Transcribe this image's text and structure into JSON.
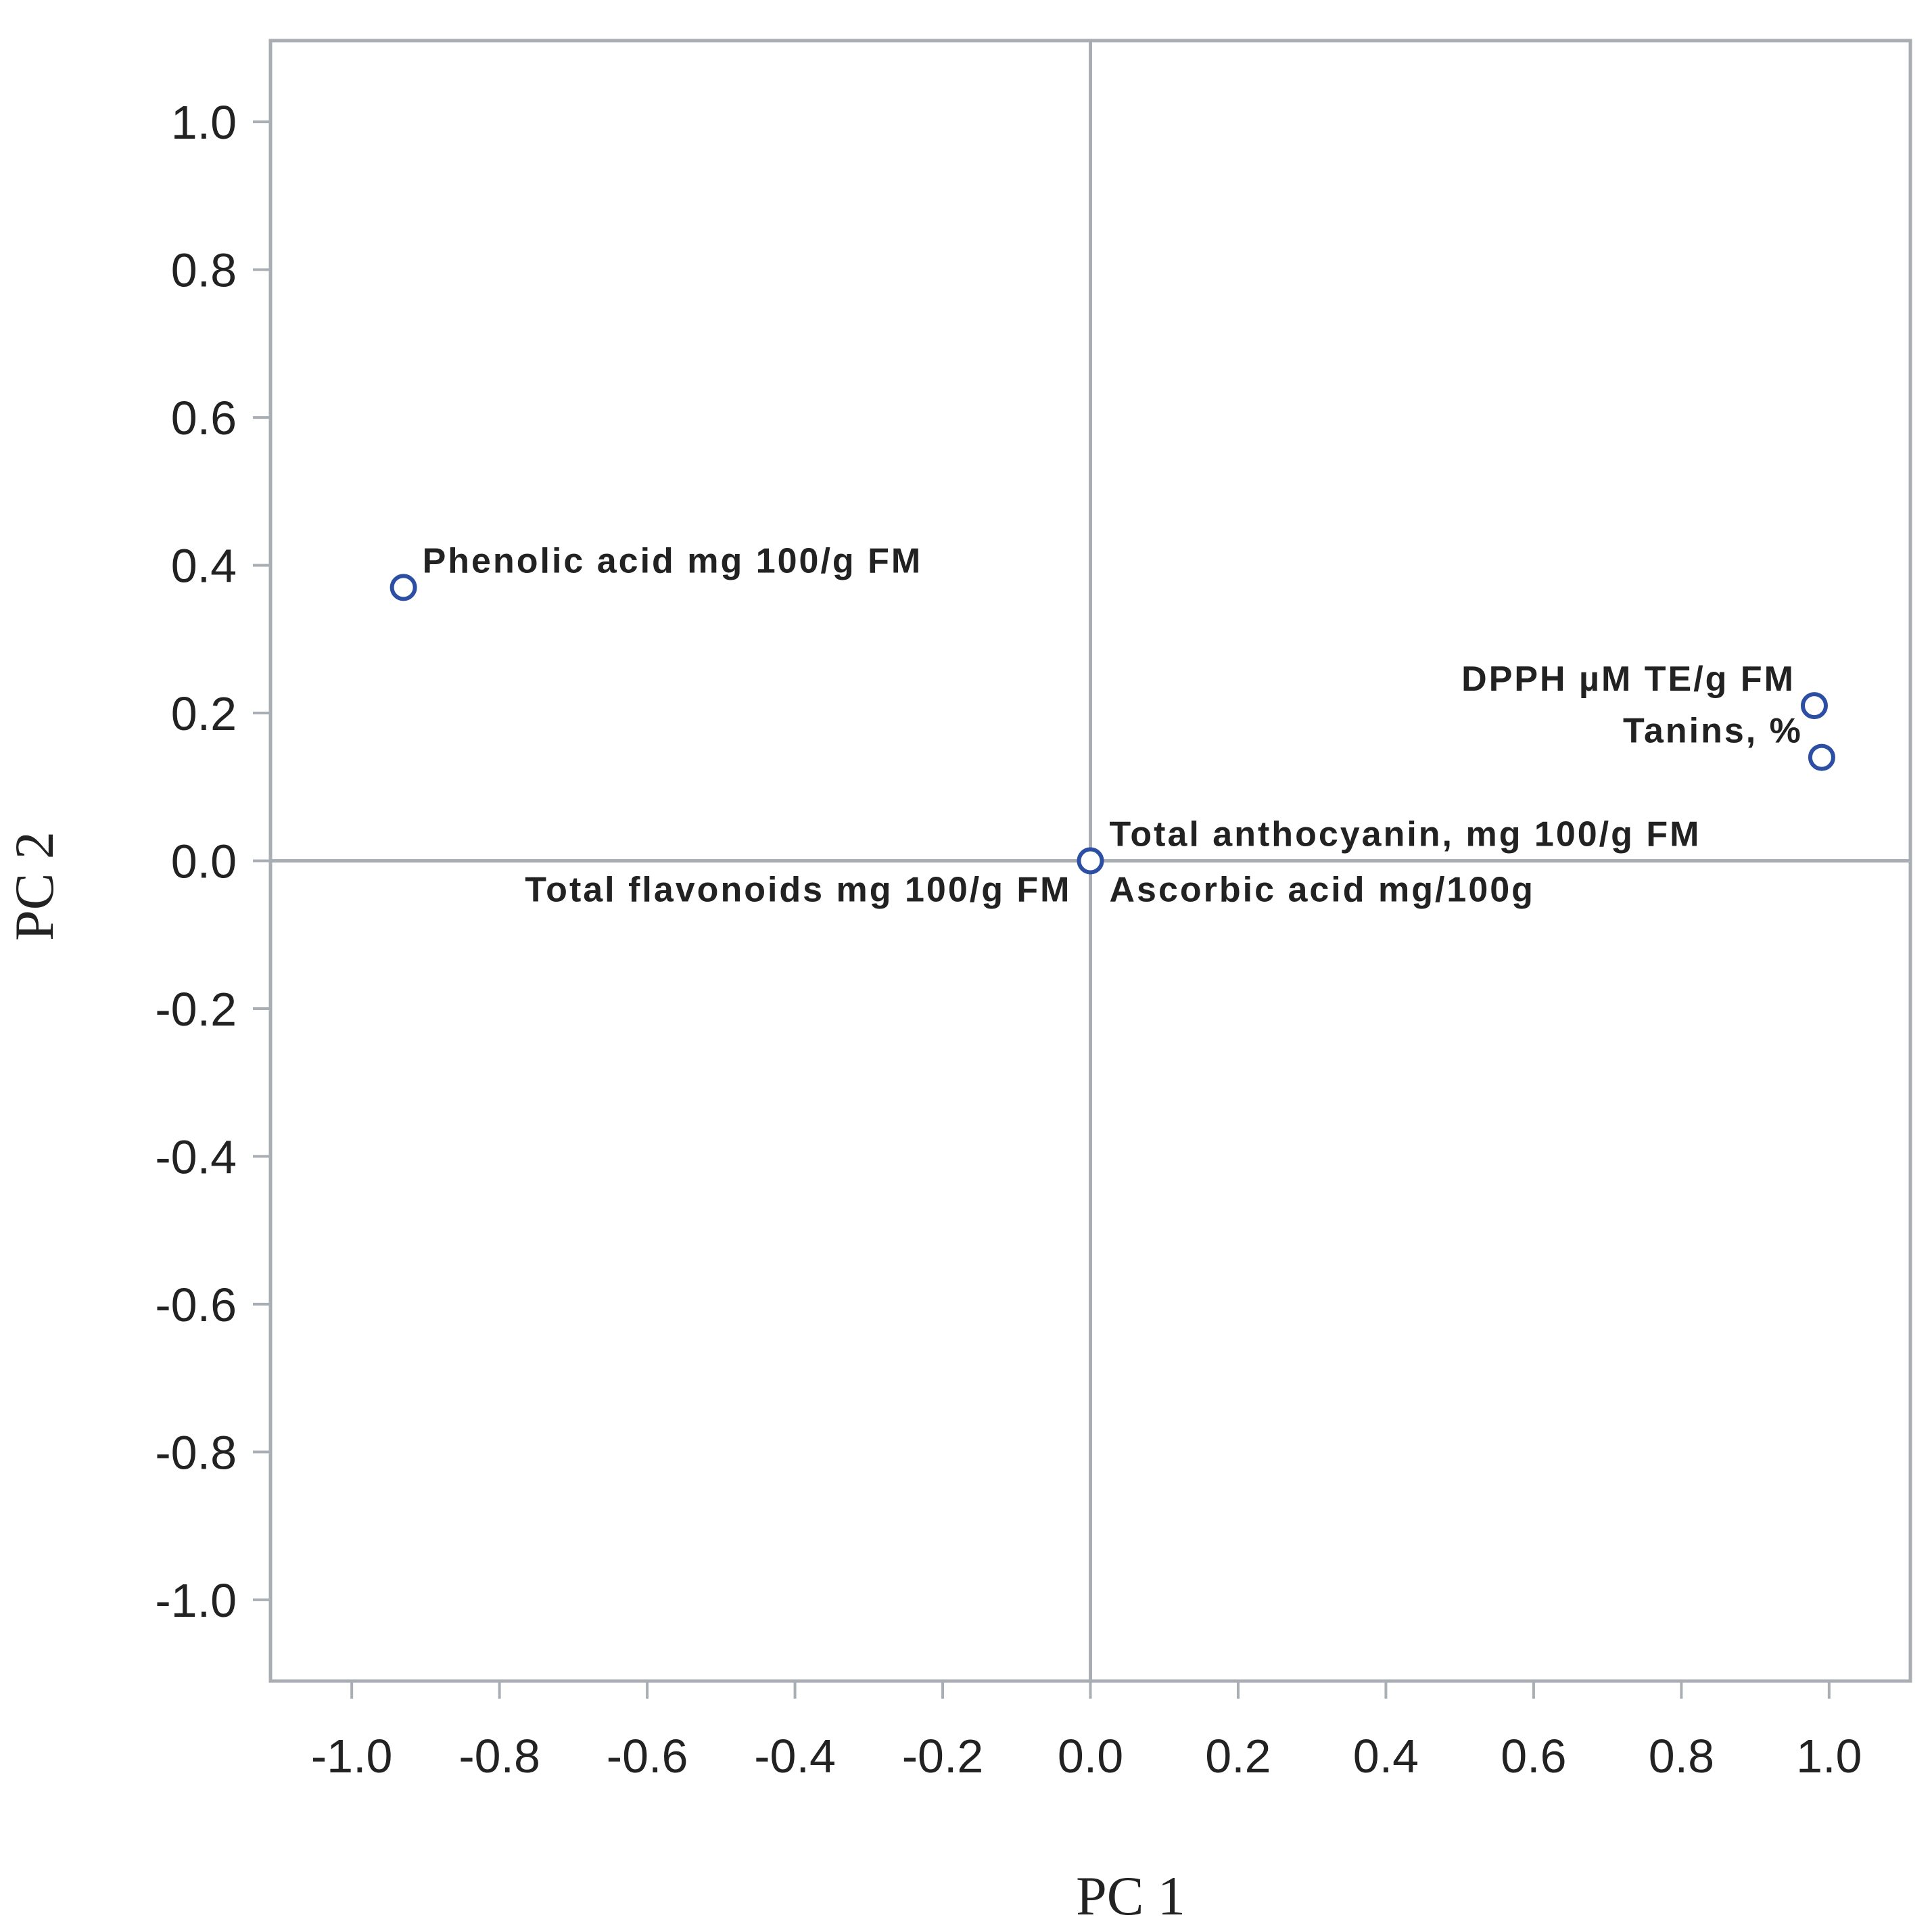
{
  "chart_data": {
    "type": "scatter",
    "title": "",
    "xlabel": "PC 1",
    "ylabel": "PC 2",
    "xlim": [
      -1.11,
      1.11
    ],
    "ylim": [
      -1.11,
      1.11
    ],
    "grid": false,
    "reference_lines": {
      "x": 0,
      "y": 0
    },
    "x_ticks": [
      -1.0,
      -0.8,
      -0.6,
      -0.4,
      -0.2,
      0.0,
      0.2,
      0.4,
      0.6,
      0.8,
      1.0
    ],
    "y_ticks": [
      1.0,
      0.8,
      0.6,
      0.4,
      0.2,
      0.0,
      -0.2,
      -0.4,
      -0.6,
      -0.8,
      -1.0
    ],
    "x_tick_labels": [
      "-1.0",
      "-0.8",
      "-0.6",
      "-0.4",
      "-0.2",
      "0.0",
      "0.2",
      "0.4",
      "0.6",
      "0.8",
      "1.0"
    ],
    "y_tick_labels": [
      "1.0",
      "0.8",
      "0.6",
      "0.4",
      "0.2",
      "0.0",
      "-0.2",
      "-0.4",
      "-0.6",
      "-0.8",
      "-1.0"
    ],
    "marker_color": "#2c4fa3",
    "points": [
      {
        "label": "Phenolic acid mg 100/g FM",
        "x": -0.93,
        "y": 0.37,
        "label_side": "right-up"
      },
      {
        "label": "DPPH µM TE/g FM",
        "x": 0.98,
        "y": 0.21,
        "label_side": "left-up"
      },
      {
        "label": "Tanins, %",
        "x": 0.99,
        "y": 0.14,
        "label_side": "left-up"
      },
      {
        "label": "Total anthocyanin, mg 100/g FM",
        "x": 0.0,
        "y": 0.0,
        "label_side": "right-up"
      },
      {
        "label": "Total flavonoids mg 100/g FM",
        "x": 0.0,
        "y": 0.0,
        "label_side": "left-down"
      },
      {
        "label": "Ascorbic acid  mg/100g",
        "x": 0.0,
        "y": 0.0,
        "label_side": "right-down"
      }
    ]
  }
}
